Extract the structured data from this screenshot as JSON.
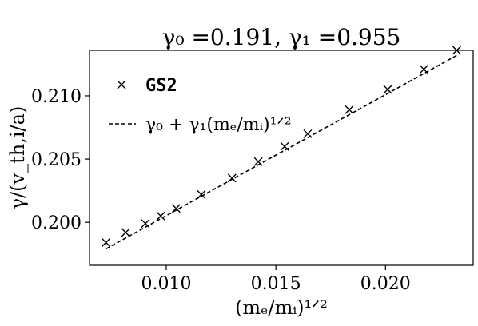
{
  "chart_data": {
    "type": "scatter",
    "title": "γ₀ =0.191, γ₁ =0.955",
    "xlabel": "(mₑ/mᵢ)¹ᐟ²",
    "ylabel": "γ/(v_th,i/a)",
    "xlim": [
      0.0065,
      0.024
    ],
    "ylim": [
      0.1966,
      0.2136
    ],
    "xticks": [
      0.01,
      0.015,
      0.02
    ],
    "xtick_labels": [
      "0.010",
      "0.015",
      "0.020"
    ],
    "yticks": [
      0.2,
      0.205,
      0.21
    ],
    "ytick_labels": [
      "0.200",
      "0.205",
      "0.210"
    ],
    "grid": false,
    "legend_position": "top-left",
    "series": [
      {
        "name": "GS2",
        "kind": "scatter",
        "marker": "x",
        "color": "#000000",
        "x": [
          0.00725,
          0.00815,
          0.00905,
          0.00975,
          0.01045,
          0.0116,
          0.013,
          0.0142,
          0.0154,
          0.01645,
          0.01835,
          0.0201,
          0.02175,
          0.02325
        ],
        "y": [
          0.1984,
          0.1992,
          0.1999,
          0.2005,
          0.2011,
          0.2022,
          0.2035,
          0.2048,
          0.206,
          0.207,
          0.2089,
          0.2105,
          0.2121,
          0.2136
        ]
      },
      {
        "name": "γ₀ + γ₁(mₑ/mᵢ)¹ᐟ²",
        "kind": "line",
        "dash": "dashed",
        "color": "#000000",
        "x": [
          0.00725,
          0.02325
        ],
        "y": [
          0.1979,
          0.2132
        ]
      }
    ]
  }
}
